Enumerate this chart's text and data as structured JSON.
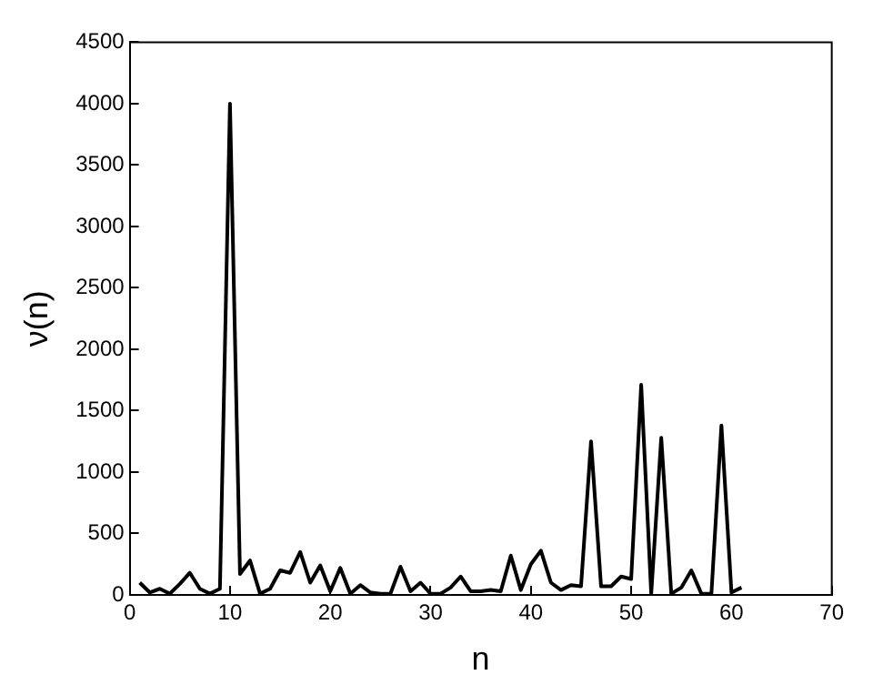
{
  "chart_data": {
    "type": "line",
    "xlabel": "n",
    "ylabel": "ν(n)",
    "x": [
      1,
      2,
      3,
      4,
      5,
      6,
      7,
      8,
      9,
      10,
      11,
      12,
      13,
      14,
      15,
      16,
      17,
      18,
      19,
      20,
      21,
      22,
      23,
      24,
      25,
      26,
      27,
      28,
      29,
      30,
      31,
      32,
      33,
      34,
      35,
      36,
      37,
      38,
      39,
      40,
      41,
      42,
      43,
      44,
      45,
      46,
      47,
      48,
      49,
      50,
      51,
      52,
      53,
      54,
      55,
      56,
      57,
      58,
      59,
      60,
      61
    ],
    "series": [
      {
        "color": "#000000",
        "values": [
          100,
          20,
          50,
          10,
          90,
          180,
          50,
          10,
          50,
          4000,
          170,
          280,
          10,
          50,
          200,
          180,
          350,
          100,
          240,
          30,
          220,
          10,
          80,
          20,
          10,
          10,
          230,
          30,
          100,
          10,
          10,
          60,
          150,
          30,
          30,
          40,
          30,
          320,
          40,
          250,
          360,
          100,
          40,
          80,
          70,
          1250,
          70,
          70,
          150,
          130,
          1710,
          10,
          1280,
          10,
          60,
          200,
          10,
          10,
          1380,
          20,
          60
        ]
      }
    ],
    "xlim": [
      0,
      70
    ],
    "xticks": [
      0,
      10,
      20,
      30,
      40,
      50,
      60,
      70
    ],
    "ylim": [
      0,
      4500
    ],
    "yticks": [
      0,
      500,
      1000,
      1500,
      2000,
      2500,
      3000,
      3500,
      4000,
      4500
    ],
    "grid": false,
    "legend": false,
    "marker": "none",
    "line_style": "solid"
  }
}
